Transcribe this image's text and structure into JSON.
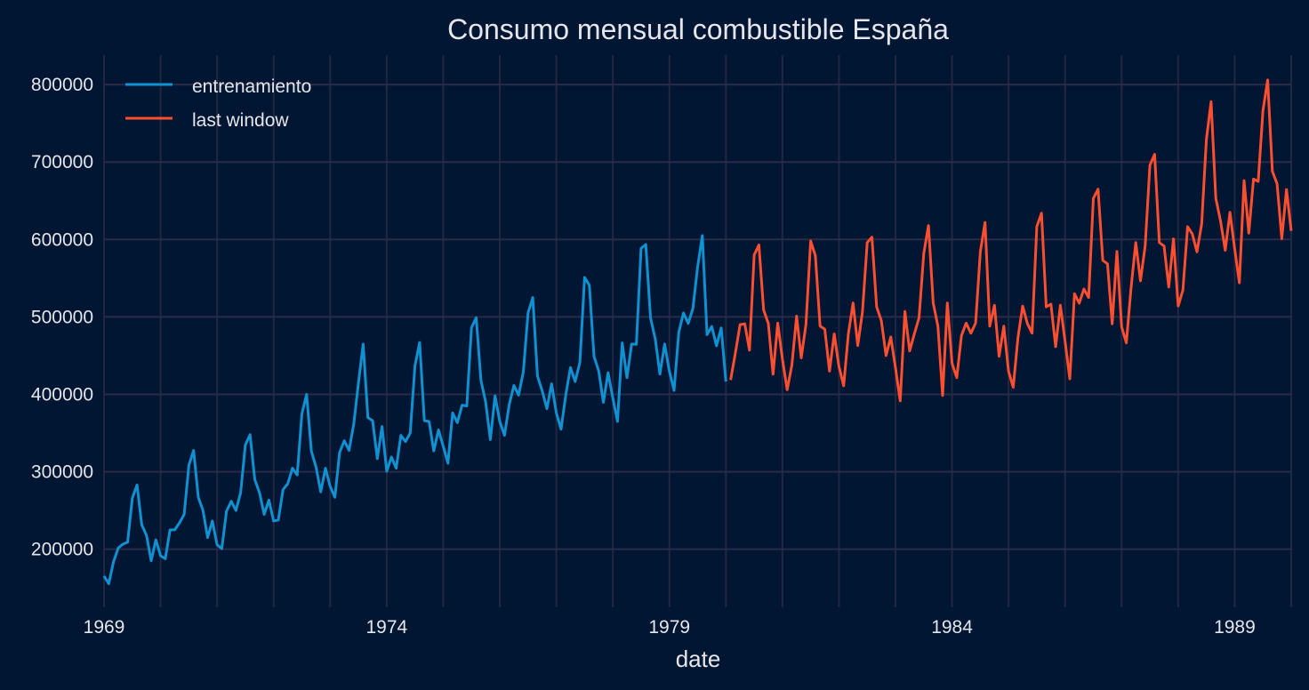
{
  "chart_data": {
    "type": "line",
    "title": "Consumo mensual combustible España",
    "xlabel": "date",
    "ylabel": "",
    "x_range": [
      "1969-01",
      "1990-01"
    ],
    "ylim": [
      125000,
      838000
    ],
    "grid": true,
    "legend_position": "top-left",
    "x_ticks": [
      "1969",
      "1974",
      "1979",
      "1984",
      "1989"
    ],
    "y_ticks": [
      200000,
      300000,
      400000,
      500000,
      600000,
      700000,
      800000
    ],
    "y_tick_labels": [
      "200000",
      "300000",
      "400000",
      "500000",
      "600000",
      "700000",
      "800000"
    ],
    "series": [
      {
        "name": "entrenamiento",
        "color": "#0f91d2",
        "start": "1969-01",
        "freq": "monthly",
        "values": [
          165400,
          155400,
          183500,
          201500,
          206500,
          209000,
          266000,
          283000,
          231500,
          218000,
          185000,
          212000,
          191500,
          187700,
          225000,
          225000,
          234000,
          245000,
          308500,
          327700,
          267000,
          250000,
          215000,
          236500,
          205800,
          200800,
          249000,
          262000,
          250000,
          273000,
          334600,
          348000,
          290000,
          273000,
          245000,
          263500,
          236500,
          237700,
          277000,
          284600,
          304600,
          296000,
          375000,
          400000,
          327000,
          306000,
          274000,
          304600,
          281000,
          267000,
          325000,
          340000,
          327700,
          361500,
          415000,
          465000,
          370000,
          366000,
          317000,
          358500,
          300800,
          319000,
          304600,
          347000,
          339000,
          350000,
          436500,
          467000,
          366000,
          365000,
          327000,
          354000,
          333000,
          311000,
          376000,
          363500,
          386000,
          385000,
          486000,
          499000,
          418500,
          390000,
          341500,
          398000,
          365000,
          347000,
          386500,
          411500,
          399000,
          429000,
          505000,
          525000,
          423600,
          404600,
          381500,
          413500,
          376000,
          355000,
          399000,
          434600,
          416500,
          441500,
          551000,
          541000,
          449000,
          430000,
          389600,
          428000,
          395400,
          365000,
          466500,
          421500,
          465000,
          464600,
          588500,
          593500,
          499000,
          472000,
          426000,
          465000,
          430000,
          405000,
          480000,
          505000,
          491500,
          511000,
          564600,
          605000,
          477000,
          487700,
          462700,
          485800,
          416500
        ]
      },
      {
        "name": "last window",
        "color": "#fc4f30",
        "start": "1980-02",
        "freq": "monthly",
        "values": [
          418500,
          453000,
          490000,
          491000,
          457000,
          580000,
          593000,
          509000,
          491500,
          426000,
          492000,
          445000,
          406000,
          438000,
          501000,
          447000,
          490000,
          598000,
          579000,
          488000,
          484000,
          430000,
          478000,
          436000,
          411000,
          478000,
          518000,
          463000,
          507000,
          596000,
          603000,
          513000,
          495000,
          450000,
          474000,
          434000,
          391500,
          507000,
          456000,
          478000,
          499000,
          582000,
          618000,
          518000,
          488000,
          398500,
          518000,
          440000,
          421500,
          476000,
          492000,
          479000,
          492000,
          584000,
          622000,
          488000,
          515000,
          449000,
          488000,
          430000,
          409000,
          473000,
          514000,
          491500,
          479000,
          616500,
          634000,
          513000,
          516500,
          461500,
          515000,
          468500,
          420000,
          530000,
          517700,
          536000,
          525000,
          653000,
          665000,
          573000,
          568500,
          491000,
          584600,
          487000,
          466500,
          537700,
          596000,
          546500,
          592000,
          696000,
          710000,
          596000,
          591500,
          538500,
          600800,
          514000,
          534600,
          616500,
          607000,
          584000,
          620000,
          729000,
          778000,
          653000,
          624000,
          586000,
          635000,
          588000,
          544000,
          676000,
          608000,
          678000,
          675000,
          766000,
          806000,
          688000,
          672000,
          601000,
          664500,
          611000
        ]
      }
    ]
  }
}
